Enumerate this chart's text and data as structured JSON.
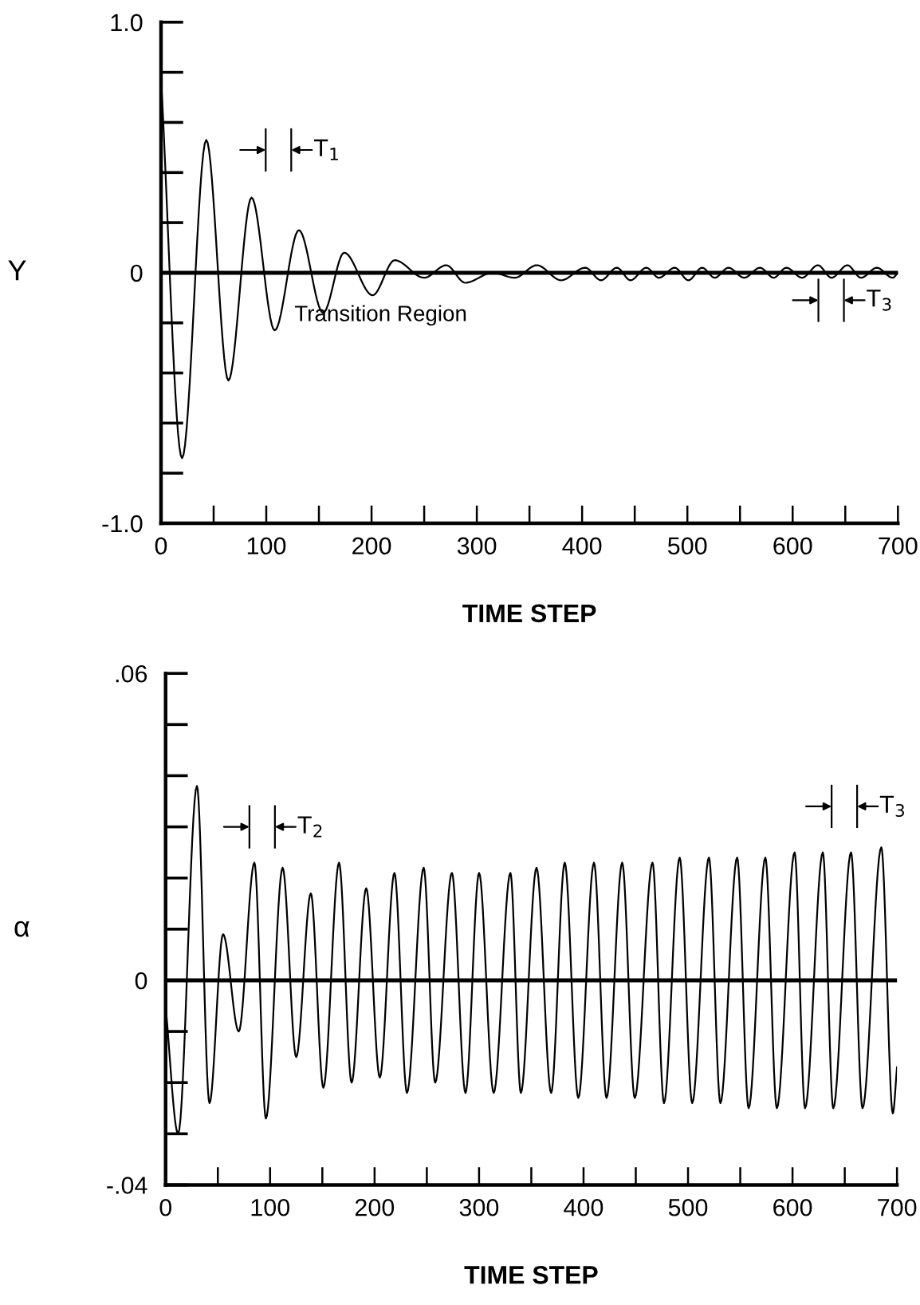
{
  "chart_data": [
    {
      "type": "line",
      "xlabel": "TIME STEP",
      "ylabel": "Y",
      "xlim": [
        0,
        700
      ],
      "ylim": [
        -1.0,
        1.0
      ],
      "xticks": [
        0,
        {
          "value": 50,
          "label": null
        },
        100,
        {
          "value": 150,
          "label": null
        },
        200,
        {
          "value": 250,
          "label": null
        },
        300,
        {
          "value": 350,
          "label": null
        },
        400,
        {
          "value": 450,
          "label": null
        },
        500,
        {
          "value": 550,
          "label": null
        },
        600,
        {
          "value": 650,
          "label": null
        },
        700
      ],
      "yticks": [
        {
          "value": -1.0,
          "label": "-1.0"
        },
        {
          "value": -0.8,
          "label": null
        },
        {
          "value": -0.6,
          "label": null
        },
        {
          "value": -0.4,
          "label": null
        },
        {
          "value": -0.2,
          "label": null
        },
        0,
        {
          "value": 0.2,
          "label": null
        },
        {
          "value": 0.4,
          "label": null
        },
        {
          "value": 0.6,
          "label": null
        },
        {
          "value": 0.8,
          "label": null
        },
        {
          "value": 1.0,
          "label": "1.0"
        }
      ],
      "ref_lines": [
        {
          "axis": "y",
          "value": 0,
          "label": null,
          "color": "#000000"
        }
      ],
      "series": [
        {
          "color": "#000000",
          "x": [
            0,
            20,
            43,
            64,
            86,
            108,
            131,
            154,
            174,
            201,
            222,
            250,
            271,
            289,
            315,
            336,
            357,
            380,
            403,
            418,
            433,
            446,
            461,
            473,
            488,
            501,
            514,
            526,
            539,
            554,
            569,
            582,
            594,
            609,
            624,
            637,
            652,
            665,
            680,
            695,
            700
          ],
          "values": [
            0.78,
            -0.74,
            0.53,
            -0.43,
            0.3,
            -0.23,
            0.17,
            -0.16,
            0.08,
            -0.09,
            0.05,
            -0.02,
            0.03,
            -0.04,
            0.0,
            -0.02,
            0.03,
            -0.03,
            0.02,
            -0.03,
            0.02,
            -0.03,
            0.02,
            -0.02,
            0.02,
            -0.03,
            0.02,
            -0.02,
            0.02,
            -0.02,
            0.02,
            -0.02,
            0.02,
            -0.02,
            0.03,
            -0.02,
            0.03,
            -0.02,
            0.02,
            -0.02,
            0.0
          ]
        }
      ],
      "annotations": [
        "T$_{1}$",
        "Transition Region",
        "T$_{3}$"
      ]
    },
    {
      "type": "line",
      "xlabel": "TIME STEP",
      "ylabel": "α",
      "xlim": [
        0,
        700
      ],
      "ylim": [
        -0.04,
        0.06
      ],
      "xticks": [
        0,
        {
          "value": 50,
          "label": null
        },
        100,
        {
          "value": 150,
          "label": null
        },
        200,
        {
          "value": 250,
          "label": null
        },
        300,
        {
          "value": 350,
          "label": null
        },
        400,
        {
          "value": 450,
          "label": null
        },
        500,
        {
          "value": 550,
          "label": null
        },
        600,
        {
          "value": 650,
          "label": null
        },
        700
      ],
      "yticks": [
        {
          "value": -0.04,
          "label": "-.04"
        },
        {
          "value": -0.03,
          "label": null
        },
        {
          "value": -0.02,
          "label": null
        },
        {
          "value": -0.01,
          "label": null
        },
        0,
        {
          "value": 0.01,
          "label": null
        },
        {
          "value": 0.02,
          "label": null
        },
        {
          "value": 0.03,
          "label": null
        },
        {
          "value": 0.04,
          "label": null
        },
        {
          "value": 0.05,
          "label": null
        },
        {
          "value": 0.06,
          "label": ".06"
        }
      ],
      "ref_lines": [
        {
          "axis": "y",
          "value": 0,
          "label": null,
          "color": "#000000"
        }
      ],
      "series": [
        {
          "color": "#000000",
          "x": [
            0,
            12,
            30,
            42,
            55,
            70,
            85,
            96,
            112,
            125,
            139,
            151,
            166,
            178,
            192,
            205,
            219,
            231,
            247,
            258,
            274,
            287,
            300,
            314,
            330,
            340,
            355,
            369,
            382,
            395,
            410,
            422,
            437,
            449,
            466,
            477,
            492,
            504,
            520,
            531,
            547,
            558,
            574,
            585,
            602,
            612,
            629,
            639,
            656,
            667,
            685,
            696,
            700
          ],
          "values": [
            -0.005,
            -0.03,
            0.038,
            -0.024,
            0.009,
            -0.01,
            0.023,
            -0.027,
            0.022,
            -0.015,
            0.017,
            -0.021,
            0.023,
            -0.02,
            0.018,
            -0.019,
            0.021,
            -0.022,
            0.022,
            -0.02,
            0.021,
            -0.022,
            0.021,
            -0.022,
            0.021,
            -0.022,
            0.022,
            -0.022,
            0.023,
            -0.023,
            0.023,
            -0.023,
            0.023,
            -0.023,
            0.023,
            -0.024,
            0.024,
            -0.024,
            0.024,
            -0.024,
            0.024,
            -0.025,
            0.024,
            -0.025,
            0.025,
            -0.025,
            0.025,
            -0.025,
            0.025,
            -0.025,
            0.026,
            -0.026,
            -0.017
          ]
        }
      ],
      "annotations": [
        "T$_{2}$",
        "T$_{3}$"
      ]
    }
  ]
}
